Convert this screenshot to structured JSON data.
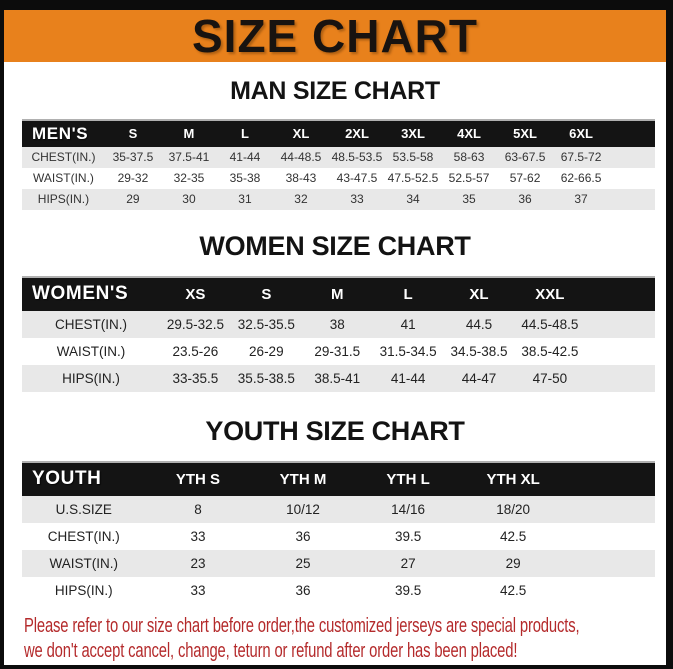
{
  "banner": {
    "title": "SIZE CHART"
  },
  "sections": [
    {
      "title": "MAN SIZE CHART",
      "table": {
        "label": "MEN'S",
        "columns": [
          "S",
          "M",
          "L",
          "XL",
          "2XL",
          "3XL",
          "4XL",
          "5XL",
          "6XL"
        ],
        "rows": [
          {
            "label": "CHEST(IN.)",
            "values": [
              "35-37.5",
              "37.5-41",
              "41-44",
              "44-48.5",
              "48.5-53.5",
              "53.5-58",
              "58-63",
              "63-67.5",
              "67.5-72"
            ]
          },
          {
            "label": "WAIST(IN.)",
            "values": [
              "29-32",
              "32-35",
              "35-38",
              "38-43",
              "43-47.5",
              "47.5-52.5",
              "52.5-57",
              "57-62",
              "62-66.5"
            ]
          },
          {
            "label": "HIPS(IN.)",
            "values": [
              "29",
              "30",
              "31",
              "32",
              "33",
              "34",
              "35",
              "36",
              "37"
            ]
          }
        ]
      }
    },
    {
      "title": "WOMEN SIZE CHART",
      "table": {
        "label": "WOMEN'S",
        "columns": [
          "XS",
          "S",
          "M",
          "L",
          "XL",
          "XXL"
        ],
        "rows": [
          {
            "label": "CHEST(IN.)",
            "values": [
              "29.5-32.5",
              "32.5-35.5",
              "38",
              "41",
              "44.5",
              "44.5-48.5"
            ]
          },
          {
            "label": "WAIST(IN.)",
            "values": [
              "23.5-26",
              "26-29",
              "29-31.5",
              "31.5-34.5",
              "34.5-38.5",
              "38.5-42.5"
            ]
          },
          {
            "label": "HIPS(IN.)",
            "values": [
              "33-35.5",
              "35.5-38.5",
              "38.5-41",
              "41-44",
              "44-47",
              "47-50"
            ]
          }
        ]
      }
    },
    {
      "title": "YOUTH SIZE CHART",
      "table": {
        "label": "YOUTH",
        "columns": [
          "YTH S",
          "YTH M",
          "YTH L",
          "YTH XL"
        ],
        "rows": [
          {
            "label": "U.S.SIZE",
            "values": [
              "8",
              "10/12",
              "14/16",
              "18/20"
            ]
          },
          {
            "label": "CHEST(IN.)",
            "values": [
              "33",
              "36",
              "39.5",
              "42.5"
            ]
          },
          {
            "label": "WAIST(IN.)",
            "values": [
              "23",
              "25",
              "27",
              "29"
            ]
          },
          {
            "label": "HIPS(IN.)",
            "values": [
              "33",
              "36",
              "39.5",
              "42.5"
            ]
          }
        ]
      }
    }
  ],
  "footer": {
    "line1": "Please refer to our size chart before order,the customized jerseys are special products,",
    "line2": "we don't accept cancel, change, teturn or refund after order has been placed!"
  },
  "colors": {
    "banner_orange": "#e8811c",
    "header_black": "#141414",
    "row_gray": "#e8e8e8",
    "footer_red": "#b42a2b",
    "frame_black": "#0c0c0c"
  }
}
